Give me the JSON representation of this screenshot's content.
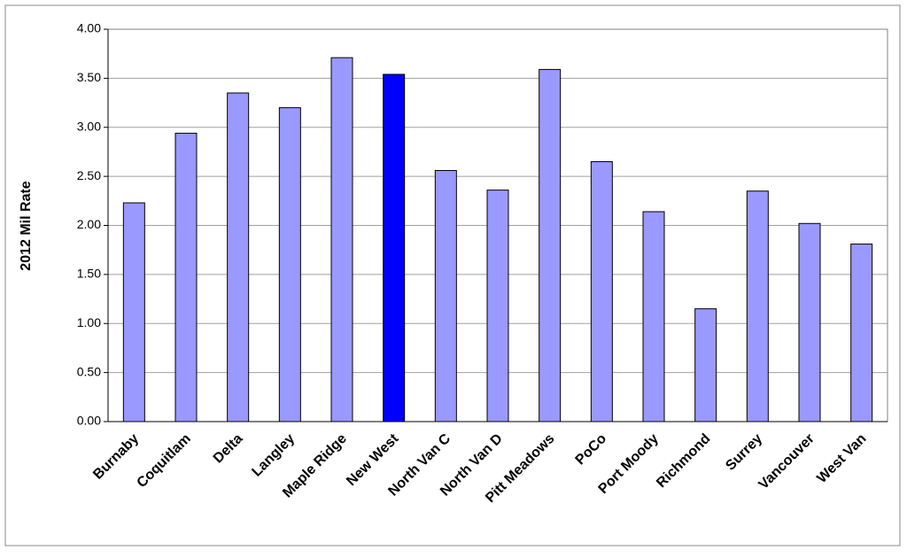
{
  "chart_data": {
    "type": "bar",
    "y_label": "2012 Mil Rate",
    "categories": [
      "Burnaby",
      "Coquitlam",
      "Delta",
      "Langley",
      "Maple Ridge",
      "New West",
      "North Van C",
      "North Van D",
      "Pitt Meadows",
      "PoCo",
      "Port Moody",
      "Richmond",
      "Surrey",
      "Vancouver",
      "West Van"
    ],
    "values": [
      2.23,
      2.94,
      3.35,
      3.2,
      3.71,
      3.54,
      2.56,
      2.36,
      3.59,
      2.65,
      2.14,
      1.15,
      2.35,
      2.02,
      1.81
    ],
    "colors": [
      "#9999ff",
      "#9999ff",
      "#9999ff",
      "#9999ff",
      "#9999ff",
      "#0000ff",
      "#9999ff",
      "#9999ff",
      "#9999ff",
      "#9999ff",
      "#9999ff",
      "#9999ff",
      "#9999ff",
      "#9999ff",
      "#9999ff"
    ],
    "ylim": [
      0,
      4
    ],
    "yticks": [
      {
        "value": 0,
        "label": "0.00"
      },
      {
        "value": 0.5,
        "label": "0.50"
      },
      {
        "value": 1,
        "label": "1.00"
      },
      {
        "value": 1.5,
        "label": "1.50"
      },
      {
        "value": 2,
        "label": "2.00"
      },
      {
        "value": 2.5,
        "label": "2.50"
      },
      {
        "value": 3,
        "label": "3.00"
      },
      {
        "value": 3.5,
        "label": "3.50"
      },
      {
        "value": 4,
        "label": "4.00"
      }
    ],
    "grid": true
  }
}
